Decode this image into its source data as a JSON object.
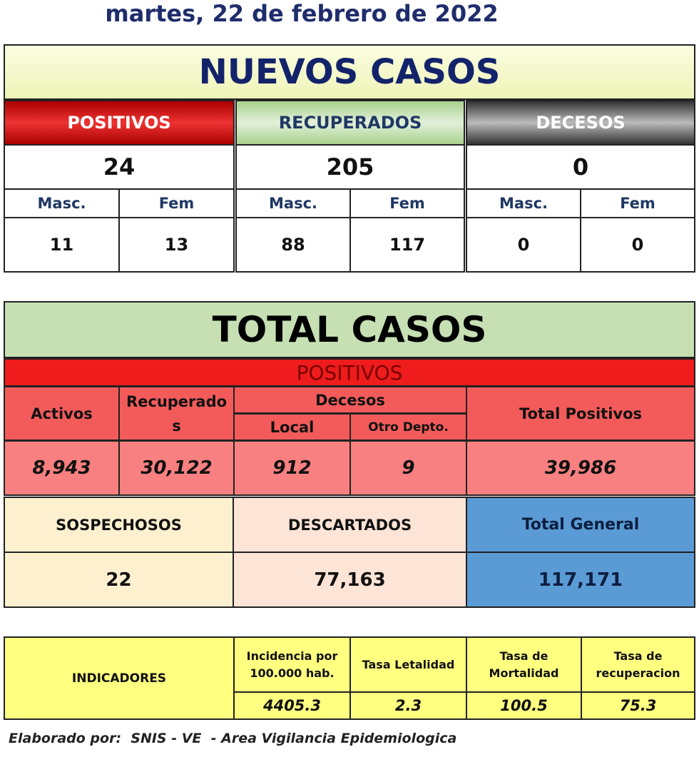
{
  "header": {
    "date": "martes, 22 de febrero de 2022"
  },
  "nuevos": {
    "title": "NUEVOS CASOS",
    "groups": [
      {
        "label": "POSITIVOS",
        "total": "24",
        "masc_label": "Masc.",
        "fem_label": "Fem",
        "masc": "11",
        "fem": "13"
      },
      {
        "label": "RECUPERADOS",
        "total": "205",
        "masc_label": "Masc.",
        "fem_label": "Fem",
        "masc": "88",
        "fem": "117"
      },
      {
        "label": "DECESOS",
        "total": "0",
        "masc_label": "Masc.",
        "fem_label": "Fem",
        "masc": "0",
        "fem": "0"
      }
    ]
  },
  "total": {
    "title": "TOTAL CASOS",
    "positivos_label": "POSITIVOS",
    "headers": {
      "activos": "Activos",
      "recuperados": "Recuperados",
      "decesos": "Decesos",
      "local": "Local",
      "otro": "Otro Depto.",
      "total_positivos": "Total Positivos"
    },
    "values": {
      "activos": "8,943",
      "recuperados": "30,122",
      "local": "912",
      "otro": "9",
      "total_positivos": "39,986"
    },
    "summary_headers": {
      "sospechosos": "SOSPECHOSOS",
      "descartados": "DESCARTADOS",
      "total_general": "Total General"
    },
    "summary_values": {
      "sospechosos": "22",
      "descartados": "77,163",
      "total_general": "117,171"
    }
  },
  "indicadores": {
    "label": "INDICADORES",
    "headers": [
      "Incidencia por 100.000 hab.",
      "Tasa Letalidad",
      "Tasa de Mortalidad",
      "Tasa de recuperacion"
    ],
    "values": [
      "4405.3",
      "2.3",
      "100.5",
      "75.3"
    ]
  },
  "footer": {
    "text": "Elaborado por:  SNIS - VE  - Area Vigilancia Epidemiologica"
  }
}
